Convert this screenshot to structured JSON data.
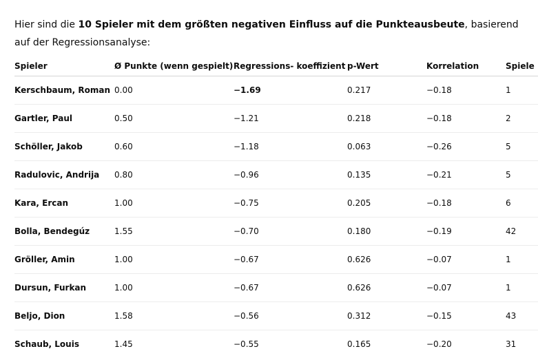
{
  "intro": {
    "prefix": "Hier sind die ",
    "bold": "10 Spieler mit dem größten negativen Einfluss auf die Punkteausbeute",
    "suffix": ", basierend auf der Regressionsanalyse:"
  },
  "table": {
    "headers": {
      "player": "Spieler",
      "avg_points": "Ø Punkte (wenn gespielt)",
      "coefficient": "Regressions- koeffizient",
      "p_value": "p-Wert",
      "correlation": "Korrelation",
      "games": "Spiele"
    },
    "rows": [
      {
        "player": "Kerschbaum, Roman",
        "avg_points": "0.00",
        "coefficient": "−1.69",
        "p_value": "0.217",
        "correlation": "−0.18",
        "games": "1"
      },
      {
        "player": "Gartler, Paul",
        "avg_points": "0.50",
        "coefficient": "−1.21",
        "p_value": "0.218",
        "correlation": "−0.18",
        "games": "2"
      },
      {
        "player": "Schöller, Jakob",
        "avg_points": "0.60",
        "coefficient": "−1.18",
        "p_value": "0.063",
        "correlation": "−0.26",
        "games": "5"
      },
      {
        "player": "Radulovic, Andrija",
        "avg_points": "0.80",
        "coefficient": "−0.96",
        "p_value": "0.135",
        "correlation": "−0.21",
        "games": "5"
      },
      {
        "player": "Kara, Ercan",
        "avg_points": "1.00",
        "coefficient": "−0.75",
        "p_value": "0.205",
        "correlation": "−0.18",
        "games": "6"
      },
      {
        "player": "Bolla, Bendegúz",
        "avg_points": "1.55",
        "coefficient": "−0.70",
        "p_value": "0.180",
        "correlation": "−0.19",
        "games": "42"
      },
      {
        "player": "Gröller, Amin",
        "avg_points": "1.00",
        "coefficient": "−0.67",
        "p_value": "0.626",
        "correlation": "−0.07",
        "games": "1"
      },
      {
        "player": "Dursun, Furkan",
        "avg_points": "1.00",
        "coefficient": "−0.67",
        "p_value": "0.626",
        "correlation": "−0.07",
        "games": "1"
      },
      {
        "player": "Beljo, Dion",
        "avg_points": "1.58",
        "coefficient": "−0.56",
        "p_value": "0.312",
        "correlation": "−0.15",
        "games": "43"
      },
      {
        "player": "Schaub, Louis",
        "avg_points": "1.45",
        "coefficient": "−0.55",
        "p_value": "0.165",
        "correlation": "−0.20",
        "games": "31"
      }
    ]
  }
}
